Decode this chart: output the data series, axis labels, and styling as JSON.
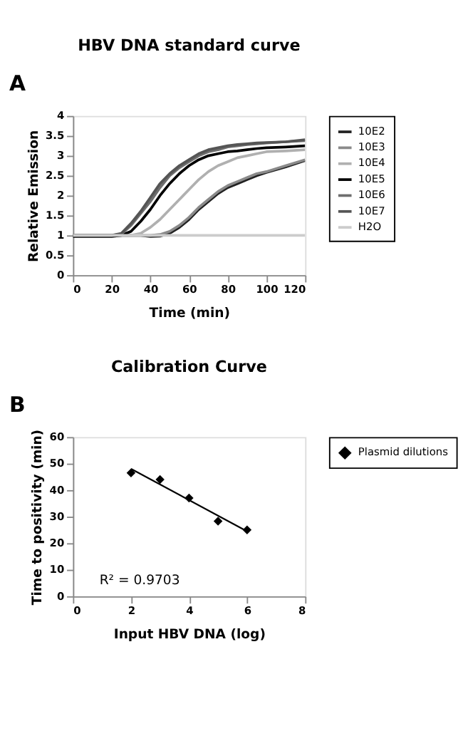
{
  "chart_data": [
    {
      "type": "line",
      "title": "HBV DNA standard curve",
      "xlabel": "Time (min)",
      "ylabel": "Relative Emission",
      "annotations": [
        "A"
      ],
      "x": [
        0,
        10,
        20,
        25,
        30,
        35,
        40,
        45,
        50,
        55,
        60,
        65,
        70,
        75,
        80,
        85,
        90,
        95,
        100,
        110,
        120
      ],
      "xlim": [
        0,
        120
      ],
      "xticks": [
        0,
        20,
        40,
        60,
        80,
        100,
        120
      ],
      "ylim": [
        0,
        4
      ],
      "yticks": [
        0,
        0.5,
        1,
        1.5,
        2,
        2.5,
        3,
        3.5,
        4
      ],
      "grid": false,
      "legend": "right",
      "series": [
        {
          "name": "10E2",
          "color": "#222222",
          "values": [
            1,
            1,
            1,
            1,
            1,
            1,
            0.97,
            0.98,
            1.05,
            1.2,
            1.4,
            1.65,
            1.85,
            2.05,
            2.2,
            2.3,
            2.4,
            2.5,
            2.58,
            2.72,
            2.88
          ]
        },
        {
          "name": "10E3",
          "color": "#8a8a8a",
          "values": [
            1,
            1,
            1,
            1,
            1,
            1,
            1,
            1.02,
            1.1,
            1.25,
            1.45,
            1.7,
            1.9,
            2.1,
            2.25,
            2.35,
            2.45,
            2.55,
            2.6,
            2.75,
            2.9
          ]
        },
        {
          "name": "10E4",
          "color": "#b0b0b0",
          "values": [
            1,
            1,
            1,
            1,
            1,
            1.05,
            1.2,
            1.4,
            1.65,
            1.9,
            2.15,
            2.4,
            2.6,
            2.75,
            2.85,
            2.95,
            3.0,
            3.05,
            3.1,
            3.12,
            3.15
          ]
        },
        {
          "name": "10E5",
          "color": "#000000",
          "values": [
            0.97,
            0.97,
            0.97,
            1,
            1.1,
            1.35,
            1.65,
            2.0,
            2.3,
            2.55,
            2.75,
            2.9,
            3.0,
            3.05,
            3.1,
            3.12,
            3.15,
            3.18,
            3.2,
            3.22,
            3.25
          ]
        },
        {
          "name": "10E6",
          "color": "#6e6e6e",
          "values": [
            1,
            1,
            1,
            1.03,
            1.25,
            1.55,
            1.85,
            2.2,
            2.5,
            2.7,
            2.85,
            3.0,
            3.1,
            3.15,
            3.22,
            3.25,
            3.28,
            3.3,
            3.32,
            3.35,
            3.38
          ]
        },
        {
          "name": "10E7",
          "color": "#555555",
          "values": [
            1,
            1,
            1,
            1.05,
            1.3,
            1.6,
            1.95,
            2.3,
            2.55,
            2.75,
            2.9,
            3.05,
            3.15,
            3.2,
            3.25,
            3.28,
            3.3,
            3.32,
            3.33,
            3.35,
            3.4
          ]
        },
        {
          "name": "H2O",
          "color": "#cccccc",
          "values": [
            1,
            1,
            1,
            1,
            1,
            1,
            1,
            1,
            1,
            1,
            1,
            1,
            1,
            1,
            1,
            1,
            1,
            1,
            1,
            1,
            1
          ]
        }
      ]
    },
    {
      "type": "scatter",
      "title": "Calibration Curve",
      "xlabel": "Input HBV DNA (log)",
      "ylabel": "Time to positivity (min)",
      "annotations": [
        "B",
        "R² = 0.9703"
      ],
      "xlim": [
        0,
        8
      ],
      "xticks": [
        0,
        2,
        4,
        6,
        8
      ],
      "ylim": [
        0,
        60
      ],
      "yticks": [
        0,
        10,
        20,
        30,
        40,
        50,
        60
      ],
      "grid": false,
      "legend": "right",
      "series": [
        {
          "name": "Plasmid dilutions",
          "color": "#000000",
          "marker": "diamond",
          "x": [
            2,
            3,
            4,
            5,
            6
          ],
          "values": [
            46.5,
            44,
            37,
            28.3,
            25
          ]
        },
        {
          "type": "line",
          "color": "#000000",
          "x": [
            2,
            6
          ],
          "values": [
            48,
            24.5
          ]
        }
      ]
    }
  ]
}
